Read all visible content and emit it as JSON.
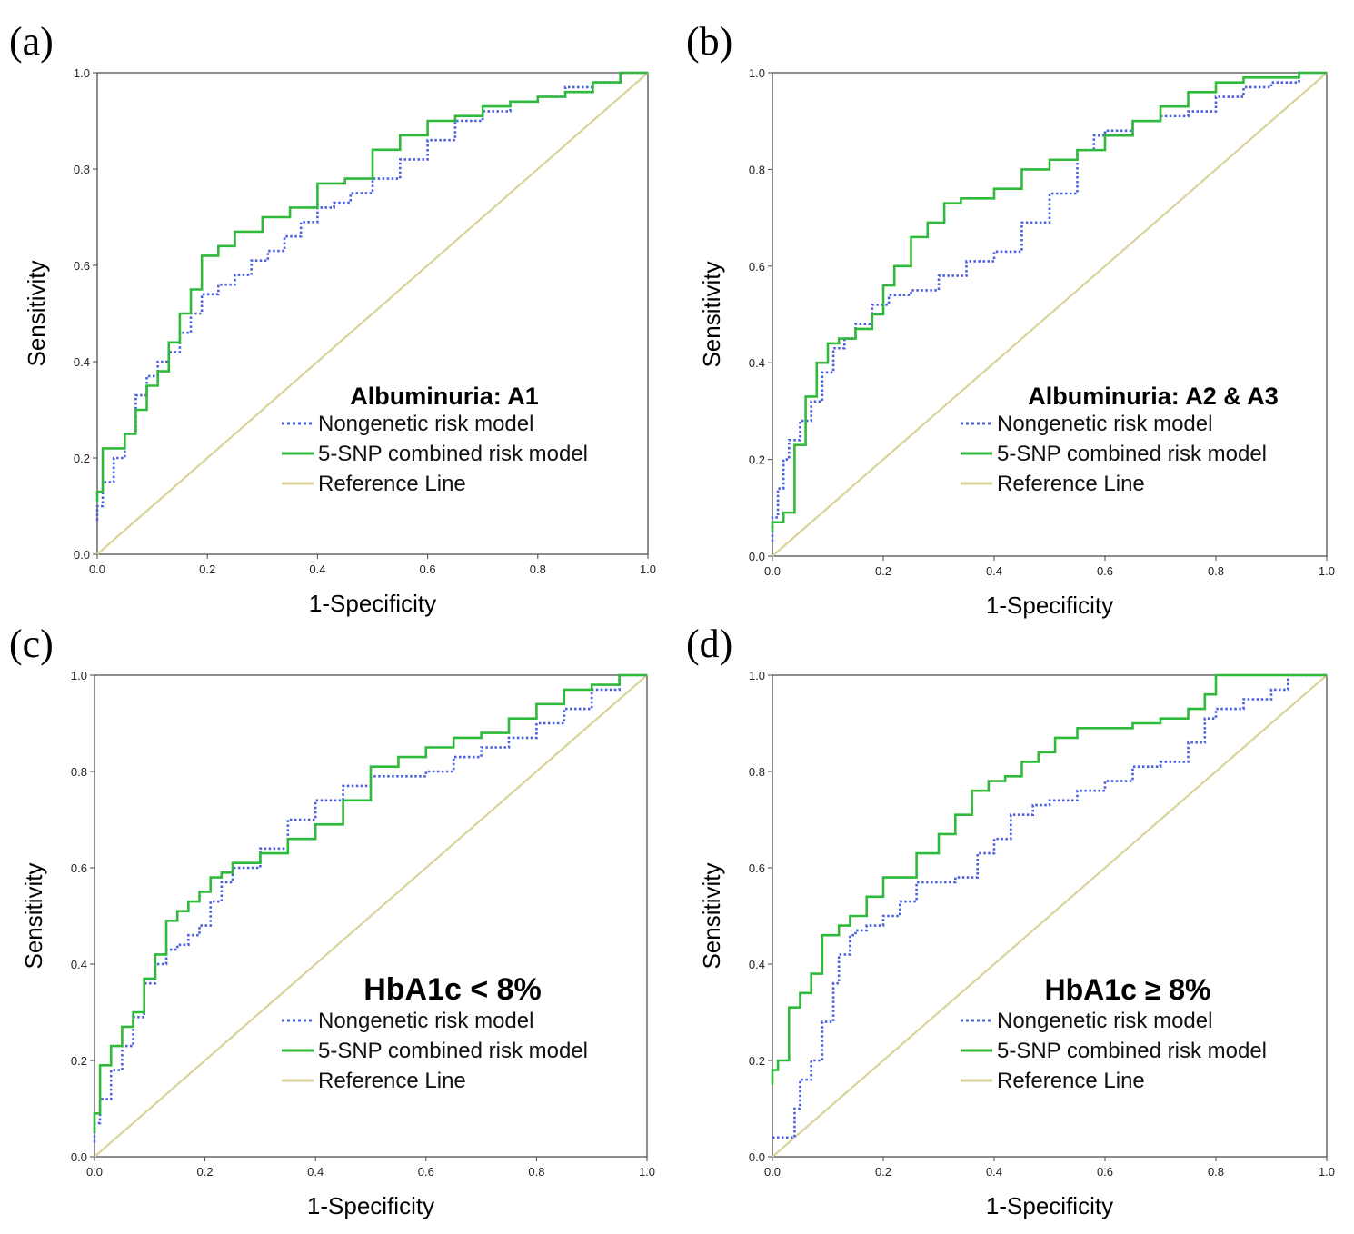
{
  "chart_data": [
    {
      "type": "line",
      "panel_label": "(a)",
      "title": "Albuminuria: A1",
      "xlabel": "1-Specificity",
      "ylabel": "Sensitivity",
      "xlim": [
        0,
        1
      ],
      "ylim": [
        0,
        1
      ],
      "xticks": [
        "0.0",
        "0.2",
        "0.4",
        "0.6",
        "0.8",
        "1.0"
      ],
      "yticks": [
        "0.0",
        "0.2",
        "0.4",
        "0.6",
        "0.8",
        "1.0"
      ],
      "legend_position": "lower-right",
      "series": [
        {
          "name": "Nongenetic risk model",
          "color": "#4a5ee0",
          "style": "dotted",
          "x": [
            0,
            0.01,
            0.03,
            0.05,
            0.07,
            0.09,
            0.11,
            0.13,
            0.15,
            0.17,
            0.19,
            0.22,
            0.25,
            0.28,
            0.31,
            0.34,
            0.37,
            0.4,
            0.43,
            0.46,
            0.5,
            0.55,
            0.6,
            0.65,
            0.7,
            0.75,
            0.8,
            0.85,
            0.9,
            0.95,
            1
          ],
          "y": [
            0.07,
            0.1,
            0.15,
            0.2,
            0.25,
            0.33,
            0.37,
            0.4,
            0.42,
            0.46,
            0.5,
            0.54,
            0.56,
            0.58,
            0.61,
            0.63,
            0.66,
            0.69,
            0.72,
            0.73,
            0.75,
            0.78,
            0.82,
            0.86,
            0.9,
            0.92,
            0.94,
            0.95,
            0.97,
            0.98,
            1
          ]
        },
        {
          "name": "5-SNP combined risk model",
          "color": "#2fba3c",
          "style": "solid",
          "x": [
            0,
            0.01,
            0.03,
            0.05,
            0.07,
            0.09,
            0.11,
            0.13,
            0.15,
            0.17,
            0.19,
            0.2,
            0.22,
            0.25,
            0.3,
            0.35,
            0.4,
            0.45,
            0.5,
            0.55,
            0.6,
            0.65,
            0.7,
            0.75,
            0.8,
            0.85,
            0.9,
            0.95,
            1
          ],
          "y": [
            0.11,
            0.13,
            0.22,
            0.22,
            0.25,
            0.3,
            0.35,
            0.38,
            0.44,
            0.5,
            0.55,
            0.62,
            0.62,
            0.64,
            0.67,
            0.7,
            0.72,
            0.77,
            0.78,
            0.84,
            0.87,
            0.9,
            0.91,
            0.93,
            0.94,
            0.95,
            0.96,
            0.98,
            1
          ]
        },
        {
          "name": "Reference Line",
          "color": "#d9d39a",
          "style": "solid",
          "x": [
            0,
            1
          ],
          "y": [
            0,
            1
          ]
        }
      ]
    },
    {
      "type": "line",
      "panel_label": "(b)",
      "title": "Albuminuria: A2 & A3",
      "xlabel": "1-Specificity",
      "ylabel": "Sensitivity",
      "xlim": [
        0,
        1
      ],
      "ylim": [
        0,
        1
      ],
      "xticks": [
        "0.0",
        "0.2",
        "0.4",
        "0.6",
        "0.8",
        "1.0"
      ],
      "yticks": [
        "0.0",
        "0.2",
        "0.4",
        "0.6",
        "0.8",
        "1.0"
      ],
      "legend_position": "lower-right",
      "series": [
        {
          "name": "Nongenetic risk model",
          "color": "#4a5ee0",
          "style": "dotted",
          "x": [
            0,
            0.01,
            0.02,
            0.03,
            0.05,
            0.07,
            0.09,
            0.11,
            0.13,
            0.15,
            0.18,
            0.21,
            0.25,
            0.3,
            0.35,
            0.4,
            0.45,
            0.5,
            0.55,
            0.58,
            0.6,
            0.65,
            0.7,
            0.75,
            0.8,
            0.85,
            0.9,
            0.95,
            1
          ],
          "y": [
            0.03,
            0.08,
            0.14,
            0.2,
            0.24,
            0.28,
            0.32,
            0.38,
            0.43,
            0.45,
            0.48,
            0.52,
            0.54,
            0.55,
            0.58,
            0.61,
            0.63,
            0.69,
            0.75,
            0.84,
            0.87,
            0.88,
            0.9,
            0.91,
            0.92,
            0.95,
            0.97,
            0.98,
            1
          ]
        },
        {
          "name": "5-SNP combined risk model",
          "color": "#2fba3c",
          "style": "solid",
          "x": [
            0,
            0.02,
            0.04,
            0.06,
            0.08,
            0.1,
            0.12,
            0.15,
            0.18,
            0.2,
            0.22,
            0.25,
            0.28,
            0.31,
            0.34,
            0.4,
            0.45,
            0.5,
            0.55,
            0.6,
            0.65,
            0.7,
            0.75,
            0.8,
            0.85,
            0.9,
            0.95,
            1
          ],
          "y": [
            0.05,
            0.07,
            0.09,
            0.23,
            0.33,
            0.4,
            0.44,
            0.45,
            0.47,
            0.5,
            0.56,
            0.6,
            0.66,
            0.69,
            0.73,
            0.74,
            0.76,
            0.8,
            0.82,
            0.84,
            0.87,
            0.9,
            0.93,
            0.96,
            0.98,
            0.99,
            0.99,
            1
          ]
        },
        {
          "name": "Reference Line",
          "color": "#d9d39a",
          "style": "solid",
          "x": [
            0,
            1
          ],
          "y": [
            0,
            1
          ]
        }
      ]
    },
    {
      "type": "line",
      "panel_label": "(c)",
      "title": "HbA1c < 8%",
      "xlabel": "1-Specificity",
      "ylabel": "Sensitivity",
      "xlim": [
        0,
        1
      ],
      "ylim": [
        0,
        1
      ],
      "xticks": [
        "0.0",
        "0.2",
        "0.4",
        "0.6",
        "0.8",
        "1.0"
      ],
      "yticks": [
        "0.0",
        "0.2",
        "0.4",
        "0.6",
        "0.8",
        "1.0"
      ],
      "legend_position": "lower-right",
      "series": [
        {
          "name": "Nongenetic risk model",
          "color": "#4a5ee0",
          "style": "dotted",
          "x": [
            0,
            0.01,
            0.03,
            0.05,
            0.07,
            0.09,
            0.11,
            0.13,
            0.15,
            0.17,
            0.19,
            0.21,
            0.23,
            0.25,
            0.3,
            0.35,
            0.4,
            0.45,
            0.5,
            0.55,
            0.6,
            0.65,
            0.7,
            0.75,
            0.8,
            0.85,
            0.9,
            0.95,
            1
          ],
          "y": [
            0.03,
            0.07,
            0.12,
            0.18,
            0.23,
            0.29,
            0.36,
            0.4,
            0.43,
            0.44,
            0.46,
            0.48,
            0.53,
            0.57,
            0.6,
            0.64,
            0.7,
            0.74,
            0.77,
            0.79,
            0.79,
            0.8,
            0.83,
            0.85,
            0.87,
            0.9,
            0.93,
            0.97,
            1
          ]
        },
        {
          "name": "5-SNP combined risk model",
          "color": "#2fba3c",
          "style": "solid",
          "x": [
            0,
            0.01,
            0.03,
            0.05,
            0.07,
            0.09,
            0.11,
            0.13,
            0.15,
            0.17,
            0.19,
            0.21,
            0.23,
            0.25,
            0.3,
            0.35,
            0.4,
            0.45,
            0.5,
            0.55,
            0.6,
            0.65,
            0.7,
            0.75,
            0.8,
            0.85,
            0.9,
            0.95,
            1
          ],
          "y": [
            0.05,
            0.09,
            0.19,
            0.23,
            0.27,
            0.3,
            0.37,
            0.42,
            0.49,
            0.51,
            0.53,
            0.55,
            0.58,
            0.59,
            0.61,
            0.63,
            0.66,
            0.69,
            0.74,
            0.81,
            0.83,
            0.85,
            0.87,
            0.88,
            0.91,
            0.94,
            0.97,
            0.98,
            1
          ]
        },
        {
          "name": "Reference Line",
          "color": "#d9d39a",
          "style": "solid",
          "x": [
            0,
            1
          ],
          "y": [
            0,
            1
          ]
        }
      ]
    },
    {
      "type": "line",
      "panel_label": "(d)",
      "title": "HbA1c ≥ 8%",
      "xlabel": "1-Specificity",
      "ylabel": "Sensitivity",
      "xlim": [
        0,
        1
      ],
      "ylim": [
        0,
        1
      ],
      "xticks": [
        "0.0",
        "0.2",
        "0.4",
        "0.6",
        "0.8",
        "1.0"
      ],
      "yticks": [
        "0.0",
        "0.2",
        "0.4",
        "0.6",
        "0.8",
        "1.0"
      ],
      "legend_position": "lower-right",
      "series": [
        {
          "name": "Nongenetic risk model",
          "color": "#4a5ee0",
          "style": "dotted",
          "x": [
            0,
            0.04,
            0.05,
            0.07,
            0.09,
            0.11,
            0.12,
            0.14,
            0.15,
            0.17,
            0.2,
            0.23,
            0.26,
            0.3,
            0.33,
            0.37,
            0.4,
            0.43,
            0.47,
            0.5,
            0.55,
            0.6,
            0.65,
            0.7,
            0.75,
            0.78,
            0.8,
            0.85,
            0.9,
            0.93,
            1
          ],
          "y": [
            0.04,
            0.04,
            0.1,
            0.16,
            0.2,
            0.28,
            0.36,
            0.42,
            0.46,
            0.47,
            0.48,
            0.5,
            0.53,
            0.57,
            0.57,
            0.58,
            0.63,
            0.66,
            0.71,
            0.73,
            0.74,
            0.76,
            0.78,
            0.81,
            0.82,
            0.86,
            0.91,
            0.93,
            0.95,
            0.97,
            1
          ]
        },
        {
          "name": "5-SNP combined risk model",
          "color": "#2fba3c",
          "style": "solid",
          "x": [
            0,
            0.01,
            0.03,
            0.05,
            0.07,
            0.09,
            0.12,
            0.14,
            0.17,
            0.2,
            0.23,
            0.26,
            0.3,
            0.33,
            0.36,
            0.39,
            0.42,
            0.45,
            0.48,
            0.51,
            0.55,
            0.6,
            0.65,
            0.7,
            0.75,
            0.78,
            0.8,
            0.85,
            1
          ],
          "y": [
            0.15,
            0.18,
            0.2,
            0.31,
            0.34,
            0.38,
            0.46,
            0.48,
            0.5,
            0.54,
            0.58,
            0.58,
            0.63,
            0.67,
            0.71,
            0.76,
            0.78,
            0.79,
            0.82,
            0.84,
            0.87,
            0.89,
            0.89,
            0.9,
            0.91,
            0.93,
            0.96,
            1,
            1
          ]
        },
        {
          "name": "Reference Line",
          "color": "#d9d39a",
          "style": "solid",
          "x": [
            0,
            1
          ],
          "y": [
            0,
            1
          ]
        }
      ]
    }
  ]
}
